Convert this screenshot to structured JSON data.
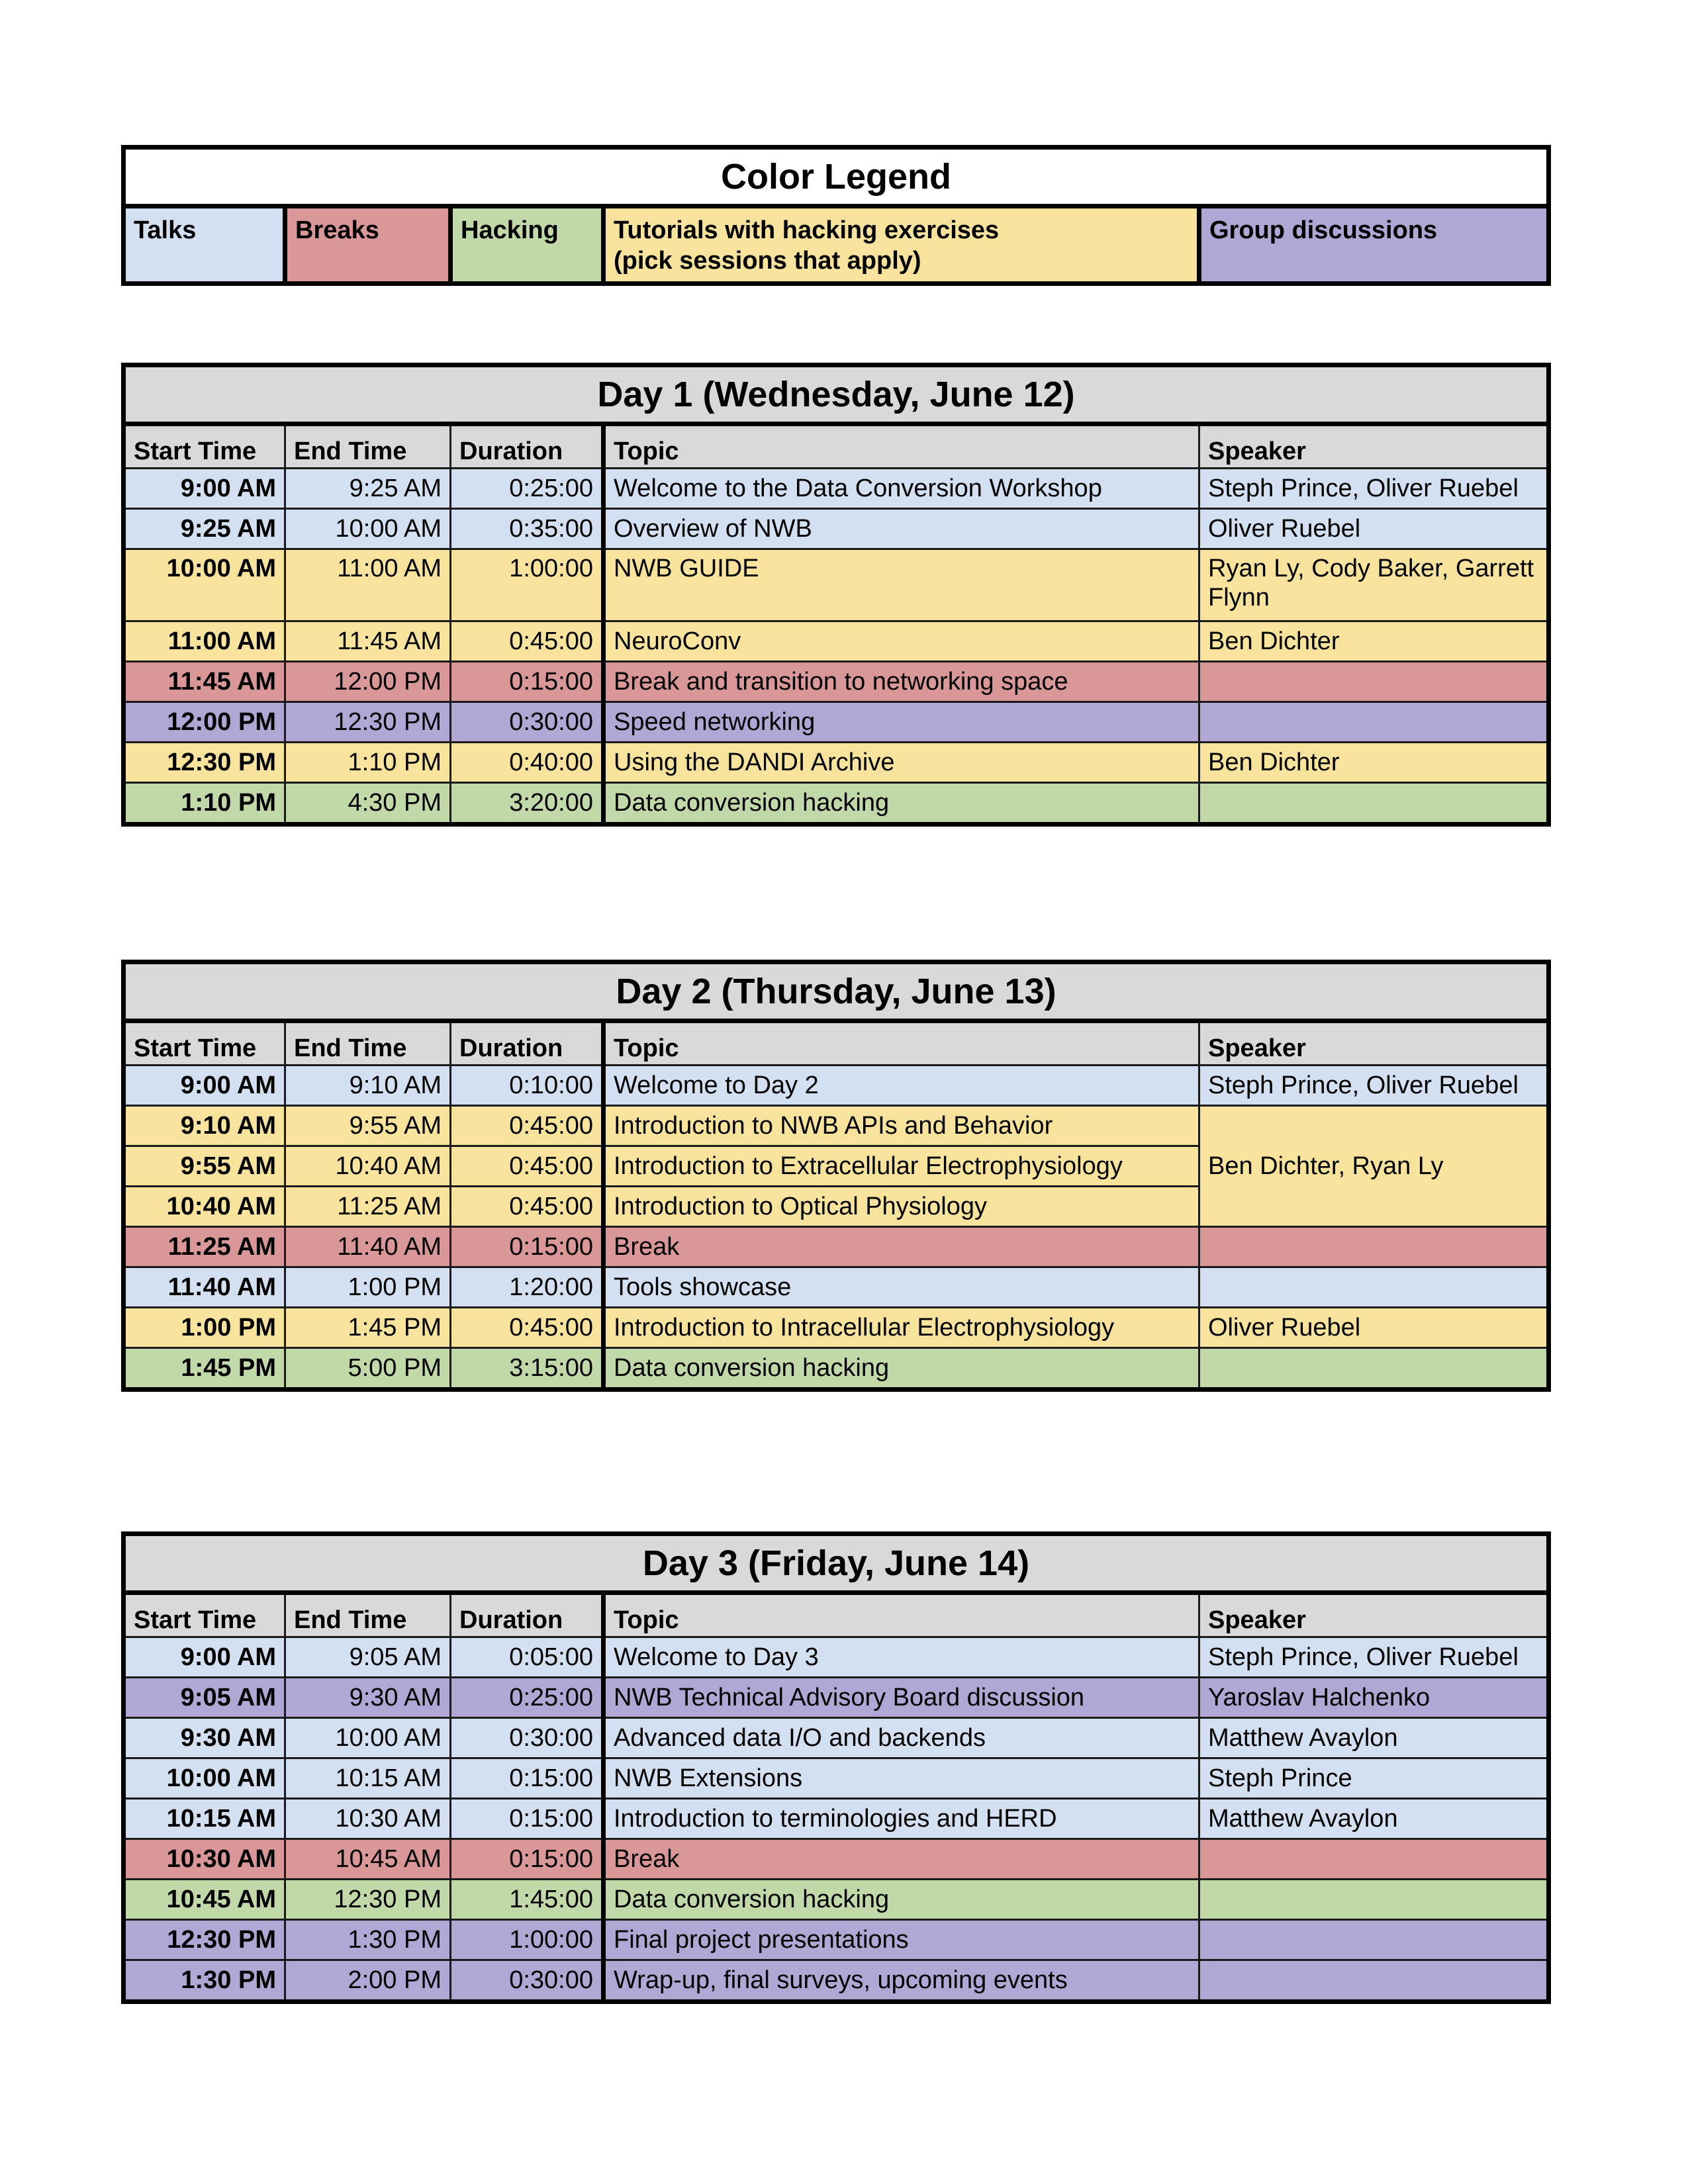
{
  "colors": {
    "talk": "#d3e0f1",
    "break": "#d99797",
    "hacking": "#c1d8a8",
    "tutorial": "#f8e39c",
    "group": "#b0a7d4",
    "header": "#d9d9d9"
  },
  "legend": {
    "title": "Color Legend",
    "items": [
      {
        "label": "Talks",
        "type": "talk"
      },
      {
        "label": "Breaks",
        "type": "break"
      },
      {
        "label": "Hacking",
        "type": "hacking"
      },
      {
        "label": "Tutorials with hacking exercises\n(pick sessions that apply)",
        "type": "tutorial"
      },
      {
        "label": "Group discussions",
        "type": "group"
      }
    ]
  },
  "columns": [
    "Start Time",
    "End Time",
    "Duration",
    "Topic",
    "Speaker"
  ],
  "days": [
    {
      "title": "Day 1 (Wednesday, June 12)",
      "rows": [
        {
          "start": "9:00 AM",
          "end": "9:25 AM",
          "duration": "0:25:00",
          "topic": "Welcome to the Data Conversion Workshop",
          "speaker": "Steph Prince, Oliver Ruebel",
          "type": "talk"
        },
        {
          "start": "9:25 AM",
          "end": "10:00 AM",
          "duration": "0:35:00",
          "topic": "Overview of NWB",
          "speaker": "Oliver Ruebel",
          "type": "talk"
        },
        {
          "start": "10:00 AM",
          "end": "11:00 AM",
          "duration": "1:00:00",
          "topic": "NWB GUIDE",
          "speaker": "Ryan Ly, Cody Baker, Garrett Flynn",
          "type": "tutorial",
          "tall": true
        },
        {
          "start": "11:00 AM",
          "end": "11:45 AM",
          "duration": "0:45:00",
          "topic": "NeuroConv",
          "speaker": "Ben Dichter",
          "type": "tutorial"
        },
        {
          "start": "11:45 AM",
          "end": "12:00 PM",
          "duration": "0:15:00",
          "topic": "Break and transition to networking space",
          "speaker": "",
          "type": "break"
        },
        {
          "start": "12:00 PM",
          "end": "12:30 PM",
          "duration": "0:30:00",
          "topic": "Speed networking",
          "speaker": "",
          "type": "group"
        },
        {
          "start": "12:30 PM",
          "end": "1:10 PM",
          "duration": "0:40:00",
          "topic": "Using the DANDI Archive",
          "speaker": "Ben Dichter",
          "type": "tutorial"
        },
        {
          "start": "1:10 PM",
          "end": "4:30 PM",
          "duration": "3:20:00",
          "topic": "Data conversion hacking",
          "speaker": "",
          "type": "hacking"
        }
      ]
    },
    {
      "title": "Day 2 (Thursday, June 13)",
      "rows": [
        {
          "start": "9:00 AM",
          "end": "9:10 AM",
          "duration": "0:10:00",
          "topic": "Welcome to Day 2",
          "speaker": "Steph Prince, Oliver Ruebel",
          "type": "talk"
        },
        {
          "start": "9:10 AM",
          "end": "9:55 AM",
          "duration": "0:45:00",
          "topic": "Introduction to NWB APIs and Behavior",
          "speaker": "Ben Dichter, Ryan Ly",
          "speaker_span": 3,
          "type": "tutorial"
        },
        {
          "start": "9:55 AM",
          "end": "10:40 AM",
          "duration": "0:45:00",
          "topic": "Introduction to Extracellular Electrophysiology",
          "type": "tutorial"
        },
        {
          "start": "10:40 AM",
          "end": "11:25 AM",
          "duration": "0:45:00",
          "topic": "Introduction to Optical Physiology",
          "type": "tutorial"
        },
        {
          "start": "11:25 AM",
          "end": "11:40 AM",
          "duration": "0:15:00",
          "topic": "Break",
          "speaker": "",
          "type": "break"
        },
        {
          "start": "11:40 AM",
          "end": "1:00 PM",
          "duration": "1:20:00",
          "topic": "Tools showcase",
          "speaker": "",
          "type": "talk"
        },
        {
          "start": "1:00 PM",
          "end": "1:45 PM",
          "duration": "0:45:00",
          "topic": "Introduction to Intracellular Electrophysiology",
          "speaker": "Oliver Ruebel",
          "type": "tutorial"
        },
        {
          "start": "1:45 PM",
          "end": "5:00 PM",
          "duration": "3:15:00",
          "topic": "Data conversion hacking",
          "speaker": "",
          "type": "hacking"
        }
      ]
    },
    {
      "title": "Day 3 (Friday, June 14)",
      "rows": [
        {
          "start": "9:00 AM",
          "end": "9:05 AM",
          "duration": "0:05:00",
          "topic": "Welcome to Day 3",
          "speaker": "Steph Prince, Oliver Ruebel",
          "type": "talk"
        },
        {
          "start": "9:05 AM",
          "end": "9:30 AM",
          "duration": "0:25:00",
          "topic": "NWB Technical Advisory Board discussion",
          "speaker": "Yaroslav Halchenko",
          "type": "group"
        },
        {
          "start": "9:30 AM",
          "end": "10:00 AM",
          "duration": "0:30:00",
          "topic": "Advanced data I/O and backends",
          "speaker": "Matthew Avaylon",
          "type": "talk"
        },
        {
          "start": "10:00 AM",
          "end": "10:15 AM",
          "duration": "0:15:00",
          "topic": "NWB Extensions",
          "speaker": "Steph Prince",
          "type": "talk"
        },
        {
          "start": "10:15 AM",
          "end": "10:30 AM",
          "duration": "0:15:00",
          "topic": "Introduction to terminologies and HERD",
          "speaker": "Matthew Avaylon",
          "type": "talk"
        },
        {
          "start": "10:30 AM",
          "end": "10:45 AM",
          "duration": "0:15:00",
          "topic": "Break",
          "speaker": "",
          "type": "break"
        },
        {
          "start": "10:45 AM",
          "end": "12:30 PM",
          "duration": "1:45:00",
          "topic": "Data conversion hacking",
          "speaker": "",
          "type": "hacking"
        },
        {
          "start": "12:30 PM",
          "end": "1:30 PM",
          "duration": "1:00:00",
          "topic": "Final project presentations",
          "speaker": "",
          "type": "group"
        },
        {
          "start": "1:30 PM",
          "end": "2:00 PM",
          "duration": "0:30:00",
          "topic": "Wrap-up, final surveys, upcoming events",
          "speaker": "",
          "type": "group"
        }
      ]
    }
  ]
}
